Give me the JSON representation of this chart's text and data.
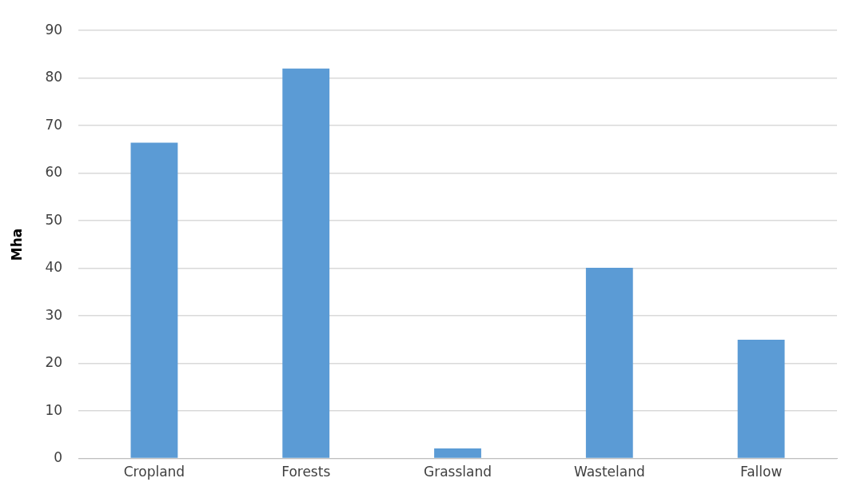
{
  "chart_data": {
    "type": "bar",
    "ylabel": "Mha",
    "categories": [
      "Cropland",
      "Forests",
      "Grassland",
      "Wasteland",
      "Fallow"
    ],
    "values": [
      66.4,
      82.0,
      2.1,
      40.1,
      25.0
    ],
    "color": "#5b9bd5",
    "ylim": [
      0,
      90
    ],
    "yticks": [
      0,
      10,
      20,
      30,
      40,
      50,
      60,
      70,
      80,
      90
    ],
    "grid": "y",
    "legend": false
  }
}
